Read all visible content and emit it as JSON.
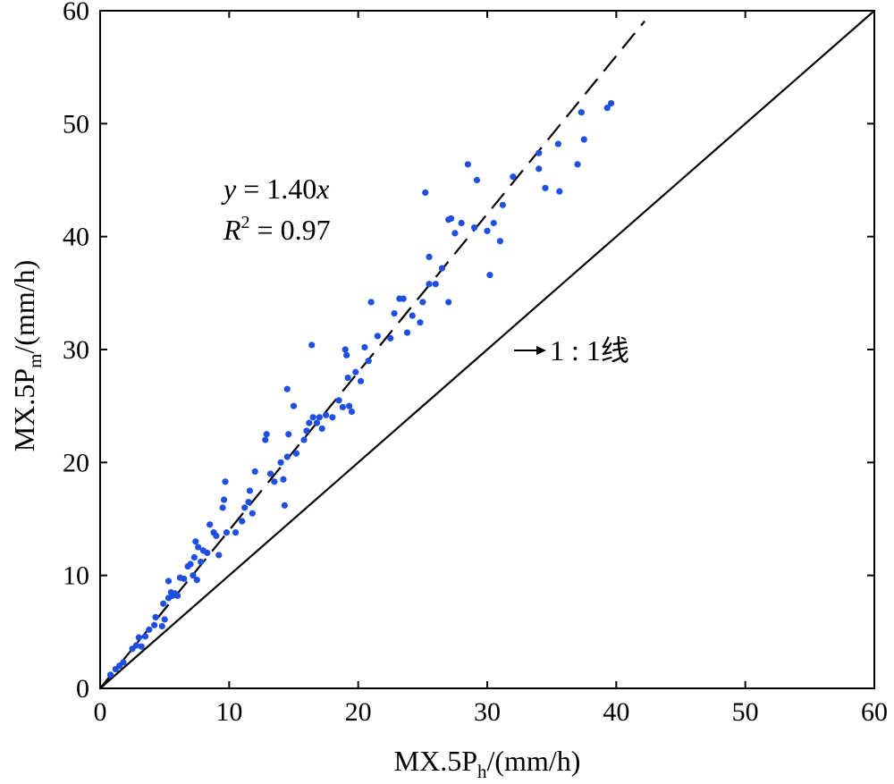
{
  "chart_data": {
    "type": "scatter",
    "xlabel": {
      "main": "MX.5P",
      "sub": "h",
      "suffix": "/(mm/h)"
    },
    "ylabel": {
      "main": "MX.5P",
      "sub": "m",
      "suffix": "/(mm/h)"
    },
    "xlim": [
      0,
      60
    ],
    "ylim": [
      0,
      60
    ],
    "xticks": [
      0,
      10,
      20,
      30,
      40,
      50,
      60
    ],
    "yticks": [
      0,
      10,
      20,
      30,
      40,
      50,
      60
    ],
    "grid": false,
    "point_color": "#1f4fe0",
    "fit_line": {
      "slope": 1.4,
      "x_range": [
        0,
        42.2
      ],
      "style": "dashed"
    },
    "identity_line": {
      "x_range": [
        0,
        60
      ],
      "style": "solid"
    },
    "annotations": {
      "equation": {
        "var_y": "y",
        "eq": " = 1.40",
        "var_x": "x"
      },
      "r2": {
        "var": "R",
        "sup": "2",
        "eq": " = 0.97"
      },
      "one_to_one": "1 : 1线"
    },
    "points": [
      [
        0.8,
        1.2
      ],
      [
        1.2,
        1.7
      ],
      [
        1.5,
        2.0
      ],
      [
        1.8,
        2.3
      ],
      [
        2.5,
        3.5
      ],
      [
        2.8,
        3.8
      ],
      [
        3.0,
        4.5
      ],
      [
        3.2,
        3.7
      ],
      [
        3.5,
        4.6
      ],
      [
        3.8,
        5.2
      ],
      [
        4.2,
        5.6
      ],
      [
        4.3,
        6.3
      ],
      [
        4.8,
        5.5
      ],
      [
        5.0,
        6.1
      ],
      [
        4.9,
        7.5
      ],
      [
        5.3,
        8.0
      ],
      [
        5.5,
        8.5
      ],
      [
        5.3,
        9.5
      ],
      [
        5.6,
        8.2
      ],
      [
        5.8,
        8.4
      ],
      [
        6.0,
        8.2
      ],
      [
        6.2,
        9.8
      ],
      [
        6.5,
        9.7
      ],
      [
        6.8,
        10.8
      ],
      [
        7.0,
        11.0
      ],
      [
        7.2,
        10.0
      ],
      [
        7.3,
        11.6
      ],
      [
        7.4,
        13.0
      ],
      [
        7.5,
        9.6
      ],
      [
        7.6,
        12.5
      ],
      [
        7.8,
        11.2
      ],
      [
        8.0,
        12.2
      ],
      [
        8.3,
        12.0
      ],
      [
        8.5,
        14.5
      ],
      [
        8.8,
        13.8
      ],
      [
        9.0,
        13.5
      ],
      [
        9.2,
        11.8
      ],
      [
        9.5,
        16.0
      ],
      [
        9.6,
        16.7
      ],
      [
        9.7,
        18.3
      ],
      [
        9.8,
        13.8
      ],
      [
        10.5,
        13.8
      ],
      [
        11.0,
        14.8
      ],
      [
        11.2,
        16.0
      ],
      [
        11.5,
        16.5
      ],
      [
        11.8,
        15.5
      ],
      [
        11.6,
        17.5
      ],
      [
        12.0,
        19.2
      ],
      [
        12.8,
        22.0
      ],
      [
        12.9,
        22.5
      ],
      [
        13.2,
        19.0
      ],
      [
        13.5,
        18.3
      ],
      [
        14.0,
        20.0
      ],
      [
        14.2,
        18.5
      ],
      [
        14.3,
        16.2
      ],
      [
        14.5,
        20.5
      ],
      [
        14.6,
        22.5
      ],
      [
        14.5,
        26.5
      ],
      [
        15.0,
        25.0
      ],
      [
        15.2,
        20.8
      ],
      [
        15.8,
        22.0
      ],
      [
        16.0,
        22.8
      ],
      [
        16.2,
        23.5
      ],
      [
        16.4,
        30.4
      ],
      [
        16.5,
        24.0
      ],
      [
        16.8,
        23.5
      ],
      [
        17.0,
        24.0
      ],
      [
        17.2,
        23.0
      ],
      [
        17.5,
        24.2
      ],
      [
        18.0,
        24.0
      ],
      [
        18.5,
        25.5
      ],
      [
        18.8,
        24.9
      ],
      [
        19.0,
        30.0
      ],
      [
        19.1,
        29.5
      ],
      [
        19.2,
        27.5
      ],
      [
        19.3,
        25.0
      ],
      [
        19.5,
        24.5
      ],
      [
        19.8,
        28.0
      ],
      [
        20.2,
        27.2
      ],
      [
        20.5,
        30.2
      ],
      [
        20.8,
        29.0
      ],
      [
        21.0,
        34.2
      ],
      [
        21.5,
        31.2
      ],
      [
        22.5,
        31.0
      ],
      [
        22.8,
        33.2
      ],
      [
        23.2,
        34.5
      ],
      [
        23.5,
        34.5
      ],
      [
        23.8,
        31.5
      ],
      [
        24.2,
        33.0
      ],
      [
        24.8,
        32.4
      ],
      [
        25.0,
        34.2
      ],
      [
        25.2,
        43.9
      ],
      [
        25.5,
        35.8
      ],
      [
        25.5,
        38.2
      ],
      [
        26.0,
        35.8
      ],
      [
        26.5,
        37.2
      ],
      [
        27.0,
        34.2
      ],
      [
        27.0,
        41.5
      ],
      [
        27.2,
        41.6
      ],
      [
        27.5,
        40.3
      ],
      [
        28.0,
        41.2
      ],
      [
        28.5,
        46.4
      ],
      [
        29.0,
        40.8
      ],
      [
        29.2,
        45.0
      ],
      [
        30.0,
        40.5
      ],
      [
        30.2,
        36.6
      ],
      [
        30.5,
        41.2
      ],
      [
        31.0,
        39.6
      ],
      [
        31.2,
        42.8
      ],
      [
        32.0,
        45.3
      ],
      [
        34.0,
        47.4
      ],
      [
        34.0,
        46.0
      ],
      [
        34.5,
        44.3
      ],
      [
        35.5,
        48.2
      ],
      [
        35.6,
        44.0
      ],
      [
        37.0,
        46.4
      ],
      [
        37.3,
        51.0
      ],
      [
        37.5,
        48.6
      ],
      [
        39.3,
        51.4
      ],
      [
        39.6,
        51.8
      ]
    ]
  }
}
